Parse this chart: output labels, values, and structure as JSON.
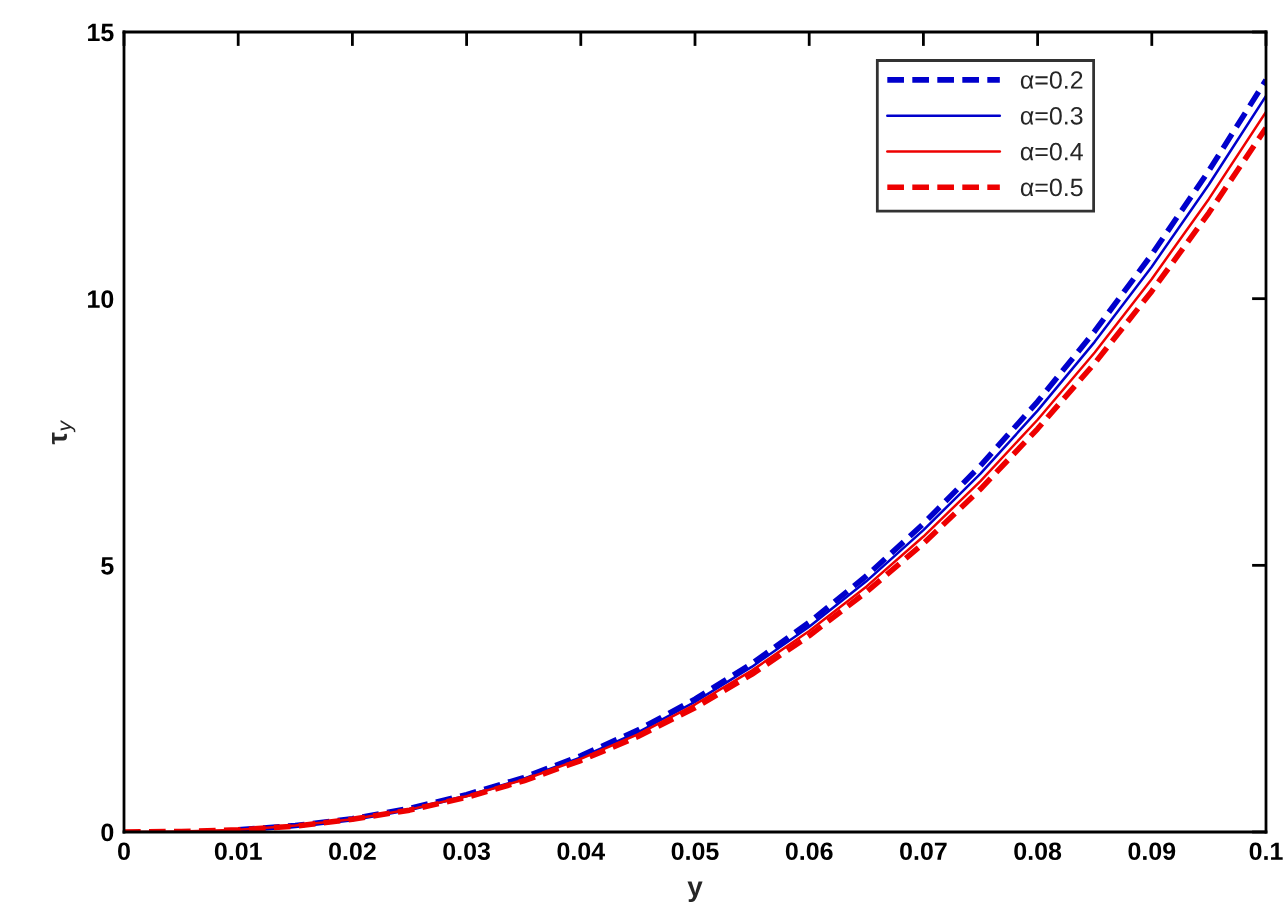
{
  "chart_data": {
    "type": "line",
    "xlabel": "y",
    "ylabel": "τ$_{y}$",
    "x": [
      0,
      0.005,
      0.01,
      0.015,
      0.02,
      0.025,
      0.03,
      0.035,
      0.04,
      0.045,
      0.05,
      0.055,
      0.06,
      0.065,
      0.07,
      0.075,
      0.08,
      0.085,
      0.09,
      0.095,
      0.1
    ],
    "series": [
      {
        "name": "α=0.2",
        "color": "#0000cc",
        "line_style": "dashed",
        "values": [
          null,
          null,
          0.04,
          0.12,
          0.25,
          0.44,
          0.7,
          1.02,
          1.43,
          1.91,
          2.49,
          3.16,
          3.93,
          4.8,
          5.78,
          6.87,
          8.07,
          9.39,
          10.83,
          12.4,
          14.1
        ]
      },
      {
        "name": "α=0.3",
        "color": "#0000cc",
        "line_style": "solid",
        "values": [
          null,
          null,
          0.04,
          0.12,
          0.25,
          0.43,
          0.68,
          1.0,
          1.4,
          1.87,
          2.44,
          3.1,
          3.85,
          4.7,
          5.66,
          6.72,
          7.9,
          9.19,
          10.6,
          12.14,
          13.8
        ]
      },
      {
        "name": "α=0.4",
        "color": "#ee0000",
        "line_style": "solid",
        "values": [
          0,
          0.01,
          0.04,
          0.12,
          0.24,
          0.42,
          0.67,
          0.98,
          1.37,
          1.83,
          2.39,
          3.03,
          3.77,
          4.6,
          5.54,
          6.58,
          7.73,
          8.99,
          10.37,
          11.87,
          13.5
        ]
      },
      {
        "name": "α=0.5",
        "color": "#ee0000",
        "line_style": "dashed",
        "values": [
          0,
          0.01,
          0.04,
          0.11,
          0.24,
          0.41,
          0.65,
          0.96,
          1.34,
          1.79,
          2.33,
          2.96,
          3.68,
          4.5,
          5.41,
          6.43,
          7.56,
          8.79,
          10.14,
          11.61,
          13.2
        ]
      }
    ],
    "xlim": [
      0,
      0.1
    ],
    "xticks": [
      0,
      0.01,
      0.02,
      0.03,
      0.04,
      0.05,
      0.06,
      0.07,
      0.08,
      0.09,
      0.1
    ],
    "ylim": [
      0,
      15
    ],
    "yticks": [
      0,
      5,
      10,
      15
    ],
    "legend": "top right",
    "grid": false
  }
}
